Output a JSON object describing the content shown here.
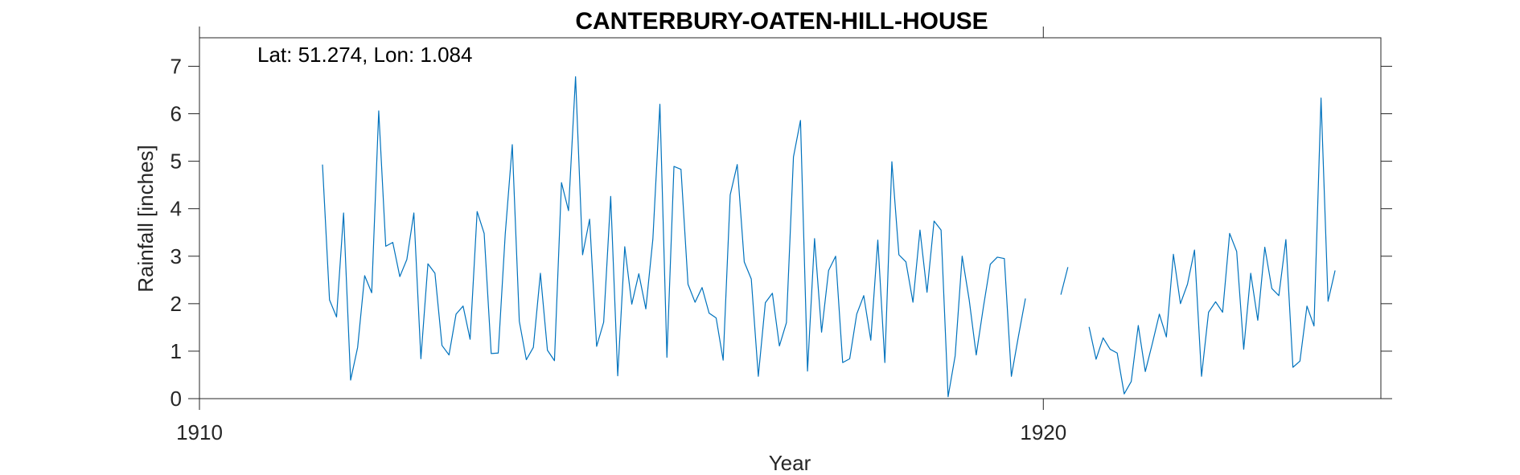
{
  "chart_data": {
    "type": "line",
    "title": "CANTERBURY-OATEN-HILL-HOUSE",
    "annotation": "Lat: 51.274, Lon: 1.084",
    "xlabel": "Year",
    "ylabel": "Rainfall [inches]",
    "xlim": [
      1910,
      1924
    ],
    "ylim": [
      0,
      7.6
    ],
    "xticks": [
      1910,
      1920
    ],
    "xtick_labels": [
      "1910",
      "1920"
    ],
    "yticks": [
      0,
      1,
      2,
      3,
      4,
      5,
      6,
      7
    ],
    "ytick_labels": [
      "0",
      "1",
      "2",
      "3",
      "4",
      "5",
      "6",
      "7"
    ],
    "grid": false,
    "line_color": "#0072BD",
    "series": [
      {
        "start": 1911.458,
        "step": 0.0833,
        "values": [
          4.93,
          2.08,
          1.72,
          3.91,
          0.39,
          1.08,
          2.59,
          2.23,
          6.06,
          3.21,
          3.29,
          2.57,
          2.93,
          3.91,
          0.84,
          2.84,
          2.64,
          1.12,
          0.92,
          1.78,
          1.95,
          1.25,
          3.94,
          3.48,
          0.95,
          0.96,
          3.47,
          5.35,
          1.63,
          0.82,
          1.08,
          2.64,
          1.02,
          0.8,
          4.55,
          3.96,
          6.78,
          3.03,
          3.78,
          1.1,
          1.61,
          4.26,
          0.48,
          3.2,
          1.99,
          2.63,
          1.89,
          3.36,
          6.2,
          0.87,
          4.89,
          4.83,
          2.41,
          2.03,
          2.34,
          1.8,
          1.7,
          0.81,
          4.29,
          4.93,
          2.88,
          2.52,
          0.47,
          2.02,
          2.22,
          1.11,
          1.6,
          5.09,
          5.86,
          0.58,
          3.37,
          1.4,
          2.7,
          3.0,
          0.76,
          0.84,
          1.78,
          2.17,
          1.23,
          3.34,
          0.76,
          4.99,
          3.03,
          2.88,
          2.03,
          3.55,
          2.24,
          3.74,
          3.55,
          0.04,
          0.9,
          3.0,
          2.08,
          0.92,
          1.91,
          2.83,
          2.98,
          2.95,
          0.47,
          1.31,
          2.11
        ]
      },
      {
        "start": 1920.208,
        "step": 0.0833,
        "values": [
          2.19,
          2.77
        ]
      },
      {
        "start": 1920.542,
        "step": 0.0833,
        "values": [
          1.51,
          0.83,
          1.28,
          1.04,
          0.96,
          0.1,
          0.36,
          1.54,
          0.57,
          1.16,
          1.78,
          1.3,
          3.04,
          2.0,
          2.41,
          3.13,
          0.47,
          1.82,
          2.04,
          1.82,
          3.48,
          3.1,
          1.04,
          2.64,
          1.65,
          3.19,
          2.32,
          2.17,
          3.35,
          0.66,
          0.79,
          1.95,
          1.53,
          6.33,
          2.05,
          2.7
        ]
      }
    ]
  }
}
